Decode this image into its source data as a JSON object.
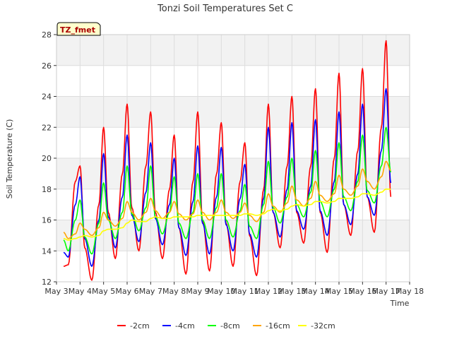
{
  "chart_data": {
    "type": "line",
    "title": "Tonzi Soil Temperatures Set C",
    "xlabel": "Time",
    "ylabel": "Soil Temperature (C)",
    "badge": "TZ_fmet",
    "xlim": [
      "2000-05-03",
      "2000-05-18"
    ],
    "ylim": [
      12,
      28
    ],
    "x_ticks": [
      "May 3",
      "May 4",
      "May 5",
      "May 6",
      "May 7",
      "May 8",
      "May 9",
      "May 10",
      "May 11",
      "May 12",
      "May 13",
      "May 14",
      "May 15",
      "May 16",
      "May 17",
      "May 18"
    ],
    "y_ticks": [
      "12",
      "14",
      "16",
      "18",
      "20",
      "22",
      "24",
      "26",
      "28"
    ],
    "grid": true,
    "legend_position": "bottom",
    "colors": {
      "band": "#f2f2f2",
      "grid": "#dddddd",
      "badge_fill": "#ffffcc",
      "badge_text": "#aa0000"
    },
    "x": [
      "May 3.3",
      "May 3.5",
      "May 3.8",
      "May 4.0",
      "May 4.2",
      "May 4.5",
      "May 4.8",
      "May 5.0",
      "May 5.2",
      "May 5.5",
      "May 5.8",
      "May 6.0",
      "May 6.2",
      "May 6.5",
      "May 6.8",
      "May 7.0",
      "May 7.2",
      "May 7.5",
      "May 7.8",
      "May 8.0",
      "May 8.2",
      "May 8.5",
      "May 8.8",
      "May 9.0",
      "May 9.2",
      "May 9.5",
      "May 9.8",
      "May 10.0",
      "May 10.2",
      "May 10.5",
      "May 10.8",
      "May 11.0",
      "May 11.2",
      "May 11.5",
      "May 11.8",
      "May 12.0",
      "May 12.2",
      "May 12.5",
      "May 12.8",
      "May 13.0",
      "May 13.2",
      "May 13.5",
      "May 13.8",
      "May 14.0",
      "May 14.2",
      "May 14.5",
      "May 14.8",
      "May 15.0",
      "May 15.2",
      "May 15.5",
      "May 15.8",
      "May 16.0",
      "May 16.2",
      "May 16.5",
      "May 16.8",
      "May 17.0",
      "May 17.2"
    ],
    "series": [
      {
        "name": "-2cm",
        "color": "#ff0000",
        "values": [
          13.0,
          13.1,
          18.5,
          19.5,
          14.2,
          12.1,
          17.0,
          22.0,
          16.5,
          13.5,
          19.0,
          23.5,
          16.8,
          14.0,
          19.5,
          23.0,
          16.5,
          13.5,
          18.0,
          21.5,
          15.5,
          12.5,
          18.5,
          23.0,
          16.0,
          12.7,
          19.0,
          22.3,
          15.8,
          13.0,
          18.5,
          21.0,
          15.0,
          12.4,
          18.0,
          23.5,
          16.5,
          14.2,
          19.5,
          24.0,
          16.5,
          14.5,
          19.5,
          24.5,
          16.5,
          13.9,
          20.0,
          25.5,
          17.0,
          15.0,
          20.5,
          25.8,
          17.5,
          15.2,
          22.0,
          27.6,
          17.5
        ]
      },
      {
        "name": "-4cm",
        "color": "#0000ff",
        "values": [
          13.9,
          13.6,
          17.0,
          18.8,
          14.8,
          13.0,
          16.0,
          20.3,
          16.2,
          14.2,
          17.5,
          21.5,
          16.3,
          14.6,
          17.8,
          21.0,
          16.1,
          14.4,
          17.0,
          20.0,
          15.5,
          13.7,
          17.2,
          20.8,
          15.8,
          13.8,
          17.5,
          20.7,
          15.7,
          14.0,
          17.4,
          19.6,
          15.1,
          13.6,
          17.4,
          22.0,
          16.5,
          14.9,
          18.0,
          22.3,
          16.6,
          15.4,
          18.2,
          22.5,
          16.6,
          15.0,
          18.5,
          23.0,
          17.0,
          15.7,
          19.0,
          23.5,
          17.5,
          16.3,
          20.5,
          24.5,
          18.4
        ]
      },
      {
        "name": "-8cm",
        "color": "#00ff00",
        "values": [
          14.7,
          14.0,
          16.0,
          17.3,
          14.9,
          13.8,
          15.8,
          18.4,
          16.0,
          14.8,
          16.5,
          19.5,
          16.4,
          15.3,
          16.8,
          19.5,
          16.2,
          15.1,
          16.5,
          18.8,
          15.8,
          14.8,
          16.5,
          19.0,
          16.0,
          14.8,
          16.8,
          19.0,
          16.0,
          14.9,
          16.6,
          18.3,
          15.6,
          14.8,
          17.0,
          19.8,
          16.8,
          15.8,
          17.5,
          20.0,
          17.0,
          16.2,
          17.8,
          20.5,
          17.2,
          16.2,
          18.0,
          21.0,
          17.5,
          16.6,
          18.5,
          21.5,
          17.9,
          17.1,
          19.5,
          22.0,
          19.1
        ]
      },
      {
        "name": "-16cm",
        "color": "#ffa500",
        "values": [
          15.2,
          14.8,
          15.1,
          15.8,
          15.4,
          15.0,
          15.5,
          16.5,
          16.0,
          15.6,
          16.1,
          17.2,
          16.5,
          16.0,
          16.5,
          17.4,
          16.6,
          16.1,
          16.5,
          17.2,
          16.4,
          16.0,
          16.4,
          17.3,
          16.5,
          16.0,
          16.5,
          17.3,
          16.5,
          16.1,
          16.5,
          17.1,
          16.3,
          15.9,
          16.5,
          17.7,
          16.9,
          16.5,
          17.1,
          18.2,
          17.3,
          16.9,
          17.4,
          18.5,
          17.6,
          17.2,
          17.7,
          18.9,
          18.0,
          17.6,
          18.2,
          19.3,
          18.5,
          18.0,
          18.8,
          19.8,
          19.2
        ]
      },
      {
        "name": "-32cm",
        "color": "#ffff00",
        "values": [
          14.8,
          14.7,
          14.8,
          14.9,
          15.0,
          14.9,
          15.0,
          15.3,
          15.4,
          15.4,
          15.5,
          15.8,
          16.0,
          15.9,
          15.9,
          16.1,
          16.2,
          16.1,
          16.1,
          16.2,
          16.2,
          16.2,
          16.2,
          16.3,
          16.3,
          16.3,
          16.3,
          16.3,
          16.3,
          16.3,
          16.3,
          16.4,
          16.4,
          16.3,
          16.4,
          16.6,
          16.7,
          16.6,
          16.7,
          16.9,
          17.0,
          16.9,
          17.0,
          17.2,
          17.2,
          17.1,
          17.2,
          17.4,
          17.4,
          17.4,
          17.5,
          17.7,
          17.7,
          17.6,
          17.8,
          18.0,
          18.0
        ]
      }
    ]
  }
}
